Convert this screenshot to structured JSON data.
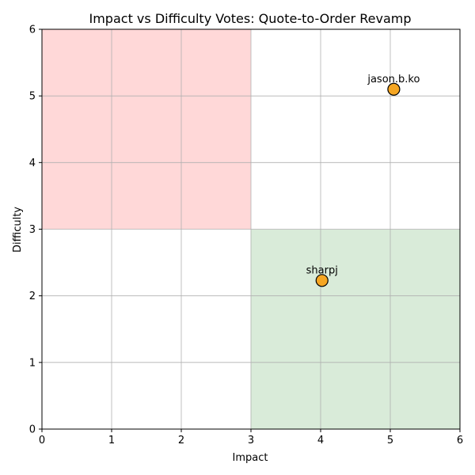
{
  "chart_data": {
    "type": "scatter",
    "title": "Impact vs Difficulty Votes: Quote-to-Order Revamp",
    "xlabel": "Impact",
    "ylabel": "Difficulty",
    "xlim": [
      0,
      6
    ],
    "ylim": [
      0,
      6
    ],
    "x_ticks": [
      0,
      1,
      2,
      3,
      4,
      5,
      6
    ],
    "y_ticks": [
      0,
      1,
      2,
      3,
      4,
      5,
      6
    ],
    "grid": true,
    "regions": [
      {
        "name": "high-difficulty-low-impact",
        "x": [
          0,
          3
        ],
        "y": [
          3,
          6
        ],
        "color": "#ffd8d8"
      },
      {
        "name": "low-difficulty-high-impact",
        "x": [
          3,
          6
        ],
        "y": [
          0,
          3
        ],
        "color": "#d9ebd9"
      }
    ],
    "points": [
      {
        "label": "jason.b.ko",
        "x": 5.05,
        "y": 5.1
      },
      {
        "label": "sharpj",
        "x": 4.02,
        "y": 2.23
      }
    ],
    "marker_color": "#f5a623",
    "marker_edge_color": "#000000"
  }
}
